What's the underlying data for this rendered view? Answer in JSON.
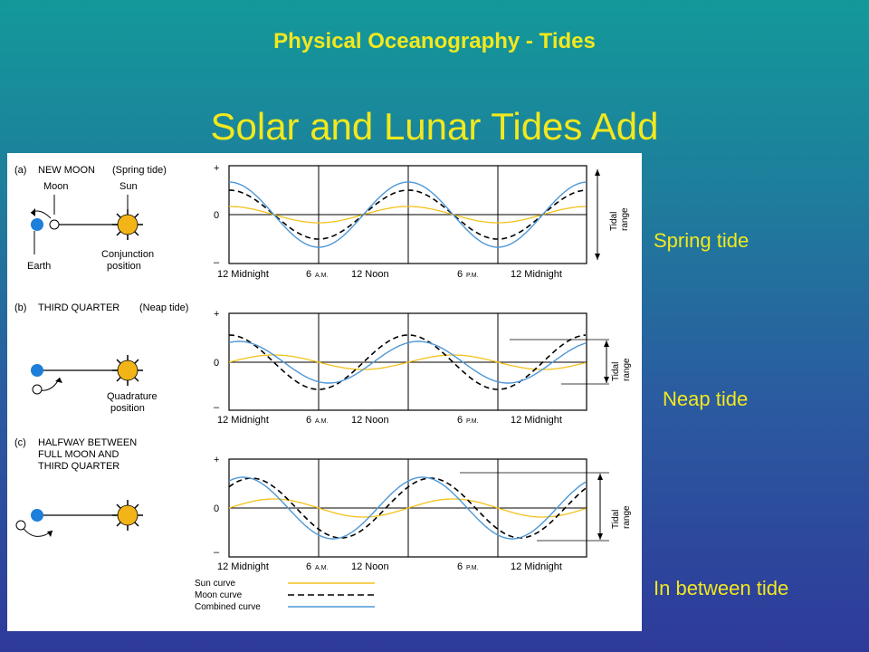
{
  "slide": {
    "title": "Physical Oceanography - Tides",
    "heading": "Solar and Lunar Tides Add",
    "side_labels": [
      "Spring tide",
      "Neap tide",
      "In between tide"
    ]
  },
  "panels": [
    {
      "tag": "(a)",
      "caption_lines": [
        "NEW MOON",
        "(Spring tide)"
      ],
      "moon_label": "Moon",
      "sun_label": "Sun",
      "earth_label": "Earth",
      "position_label": [
        "Conjunction",
        "position"
      ]
    },
    {
      "tag": "(b)",
      "caption_lines": [
        "THIRD QUARTER",
        "(Neap tide)"
      ],
      "position_label": [
        "Quadrature",
        "position"
      ]
    },
    {
      "tag": "(c)",
      "caption_lines": [
        "HALFWAY BETWEEN",
        "FULL MOON AND",
        "THIRD QUARTER"
      ]
    }
  ],
  "axis": {
    "y_ticks": [
      "+",
      "0",
      "–"
    ],
    "x_labels": [
      "12 Midnight",
      "6",
      "A.M.",
      "12 Noon",
      "6",
      "P.M.",
      "12 Midnight"
    ],
    "range_label": [
      "Tidal",
      "range"
    ]
  },
  "legend": {
    "sun": "Sun curve",
    "moon": "Moon curve",
    "combined": "Combined curve"
  },
  "colors": {
    "sun": "#f2c21b",
    "moon": "#000000",
    "combined": "#4e97d6",
    "earth": "#1d7fd9",
    "text_yellow": "#f2e81e"
  }
}
